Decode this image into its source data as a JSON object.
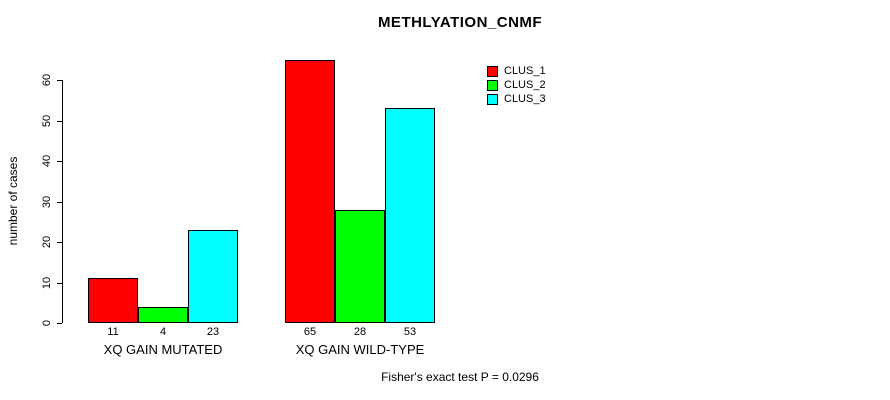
{
  "title": "METHLYATION_CNMF",
  "y_axis": {
    "label": "number of cases"
  },
  "footer": "Fisher's exact test P = 0.0296",
  "chart_data": {
    "type": "bar",
    "title": "METHLYATION_CNMF",
    "ylabel": "number of cases",
    "xlabel": "",
    "categories": [
      "XQ GAIN MUTATED",
      "XQ GAIN WILD-TYPE"
    ],
    "series": [
      {
        "name": "CLUS_1",
        "color": "#FF0000",
        "values": [
          11,
          65
        ]
      },
      {
        "name": "CLUS_2",
        "color": "#00FF00",
        "values": [
          4,
          28
        ]
      },
      {
        "name": "CLUS_3",
        "color": "#00FFFF",
        "values": [
          23,
          53
        ]
      }
    ],
    "bar_value_labels_shown": true,
    "yticks": [
      0,
      10,
      20,
      30,
      40,
      50,
      60
    ],
    "ylim": [
      0,
      65
    ],
    "grid": false,
    "legend_position": "top-right",
    "annotation": "Fisher's exact test P = 0.0296"
  }
}
